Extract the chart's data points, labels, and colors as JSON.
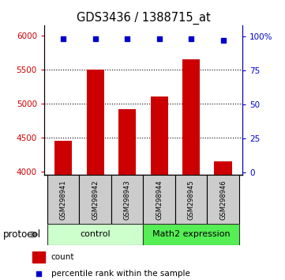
{
  "title": "GDS3436 / 1388715_at",
  "samples": [
    "GSM298941",
    "GSM298942",
    "GSM298943",
    "GSM298944",
    "GSM298945",
    "GSM298946"
  ],
  "counts": [
    4450,
    5500,
    4920,
    5100,
    5650,
    4150
  ],
  "percentile_ranks": [
    98,
    98,
    98,
    98,
    98,
    97
  ],
  "ylim_left": [
    3950,
    6150
  ],
  "ylim_right": [
    -2,
    108
  ],
  "yticks_left": [
    4000,
    4500,
    5000,
    5500,
    6000
  ],
  "yticks_right": [
    0,
    25,
    50,
    75,
    100
  ],
  "ytick_labels_right": [
    "0",
    "25",
    "50",
    "75",
    "100%"
  ],
  "bar_color": "#cc0000",
  "dot_color": "#0000cc",
  "group_control": [
    0,
    1,
    2
  ],
  "group_math2": [
    3,
    4,
    5
  ],
  "group_control_label": "control",
  "group_math2_label": "Math2 expression",
  "protocol_label": "protocol",
  "legend_count_label": "count",
  "legend_percentile_label": "percentile rank within the sample",
  "sample_box_color": "#cccccc",
  "control_bg_color": "#ccffcc",
  "math2_bg_color": "#55ee55",
  "bar_ybase": 3950
}
